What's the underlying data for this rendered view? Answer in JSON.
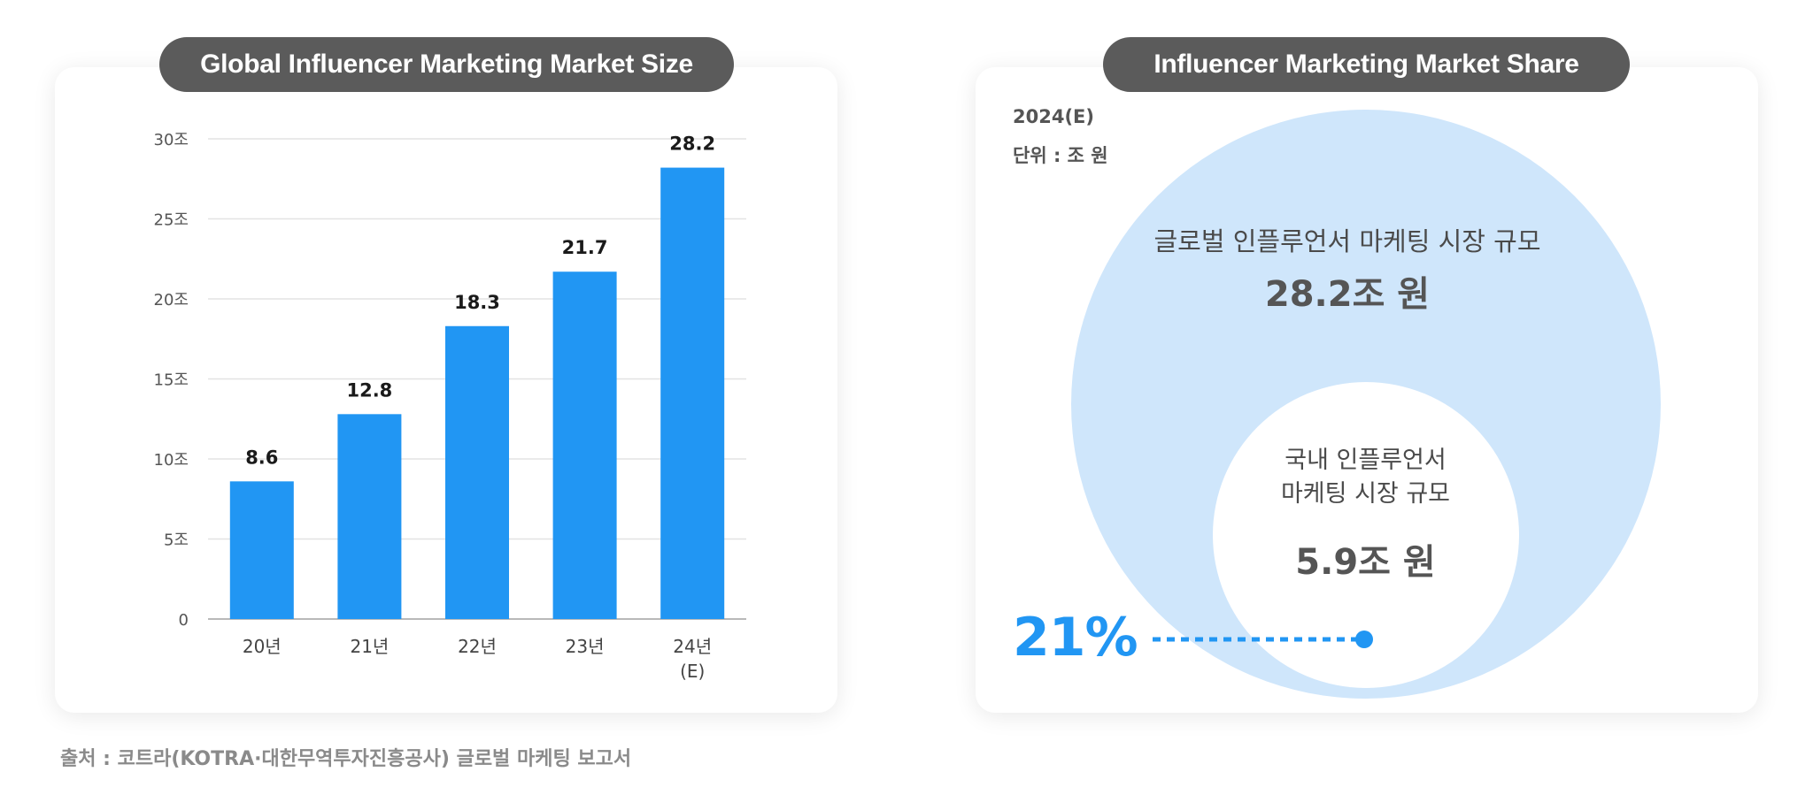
{
  "left_panel": {
    "title": "Global Influencer Marketing Market Size"
  },
  "right_panel": {
    "title": "Influencer Marketing Market Share",
    "year": "2024(E)",
    "unit": "단위 : 조 원",
    "global_label": "글로벌 인플루언서 마케팅 시장 규모",
    "global_value": "28.2조 원",
    "domestic_label": "국내 인플루언서\n마케팅 시장 규모",
    "domestic_value": "5.9조 원",
    "share_percent": "21%"
  },
  "source": "출처 : 코트라(KOTRA·대한무역투자진흥공사) 글로벌 마케팅 보고서",
  "colors": {
    "bar": "#2196f3",
    "grid": "#e3e3e3",
    "outer_circle": "#cfe6fb",
    "inner_circle": "#ffffff",
    "accent": "#2196f3",
    "pill": "#5b5b5b"
  },
  "chart_data": [
    {
      "type": "bar",
      "title": "Global Influencer Marketing Market Size",
      "categories": [
        "20년",
        "21년",
        "22년",
        "23년",
        "24년\n(E)"
      ],
      "values": [
        8.6,
        12.8,
        18.3,
        21.7,
        28.2
      ],
      "data_labels": [
        "8.6",
        "12.8",
        "18.3",
        "21.7",
        "28.2"
      ],
      "y_ticks": [
        0,
        5,
        10,
        15,
        20,
        25,
        30
      ],
      "y_tick_labels": [
        "0",
        "5조",
        "10조",
        "15조",
        "20조",
        "25조",
        "30조"
      ],
      "ylim": [
        0,
        30
      ],
      "grid": true,
      "xlabel": "",
      "ylabel": ""
    },
    {
      "type": "pie",
      "title": "Influencer Marketing Market Share",
      "categories": [
        "글로벌 인플루언서 마케팅 시장 규모",
        "국내 인플루언서 마케팅 시장 규모"
      ],
      "values": [
        28.2,
        5.9
      ],
      "share_percent": 21
    }
  ]
}
